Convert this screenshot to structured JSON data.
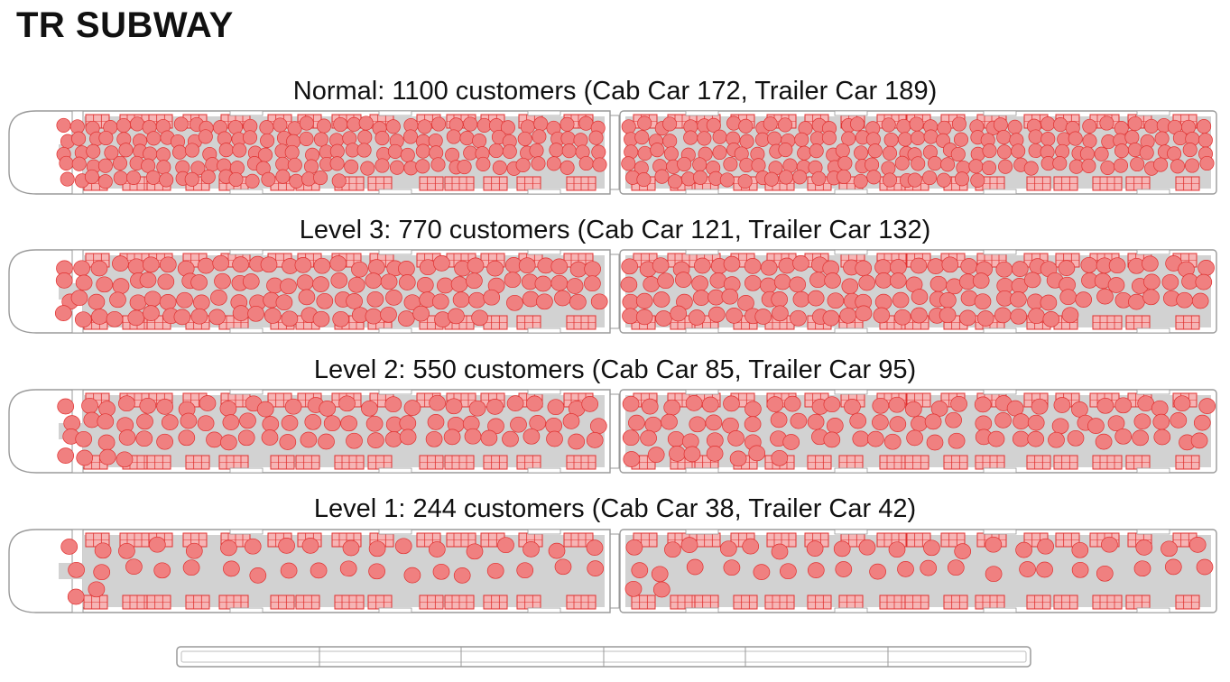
{
  "title": "TR SUBWAY",
  "colors": {
    "passenger_fill": "#f08080",
    "passenger_stroke": "#e0302f",
    "seat_fill": "#f6b5b5",
    "seat_stroke": "#e0302f",
    "floor": "#d2d2d2",
    "outline": "#9a9a9a"
  },
  "levels": [
    {
      "label": "Normal: 1100 customers (Cab Car 172, Trailer Car 189)",
      "customers": 1100,
      "cab_car": 172,
      "trailer_car": 189
    },
    {
      "label": "Level 3: 770 customers (Cab Car 121, Trailer Car 132)",
      "customers": 770,
      "cab_car": 121,
      "trailer_car": 132
    },
    {
      "label": "Level 2: 550 customers (Cab Car 85, Trailer Car 95)",
      "customers": 550,
      "cab_car": 85,
      "trailer_car": 95
    },
    {
      "label": "Level 1: 244 customers (Cab Car 38, Trailer Car 42)",
      "customers": 244,
      "cab_car": 38,
      "trailer_car": 42
    }
  ]
}
